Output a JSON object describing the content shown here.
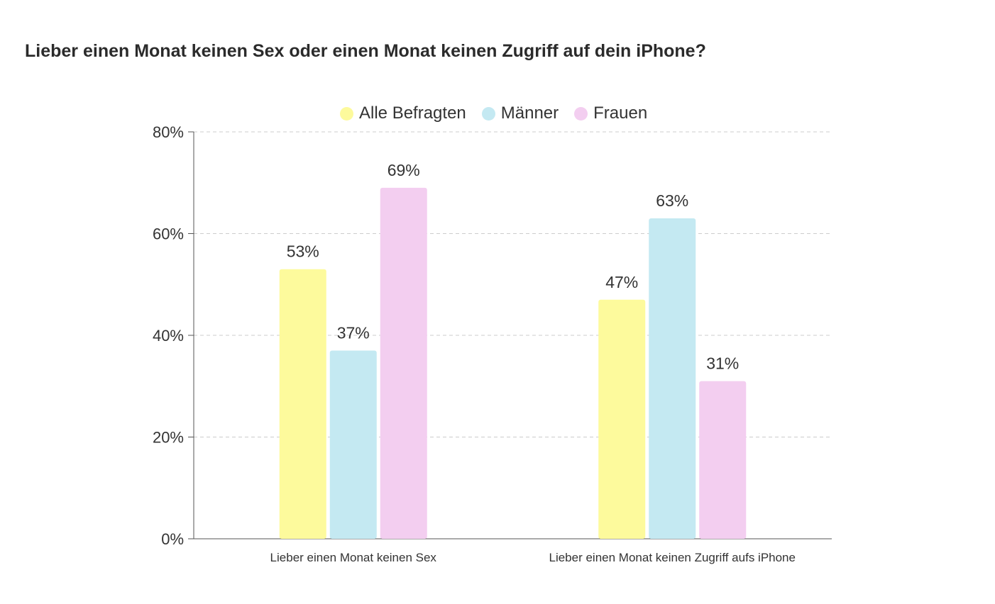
{
  "title": "Lieber einen Monat keinen Sex oder einen Monat keinen Zugriff auf dein iPhone?",
  "chart_data": {
    "type": "bar",
    "title": "Lieber einen Monat keinen Sex oder einen Monat keinen Zugriff auf dein iPhone?",
    "categories": [
      "Lieber einen Monat keinen Sex",
      "Lieber einen Monat keinen Zugriff aufs iPhone"
    ],
    "series": [
      {
        "name": "Alle Befragten",
        "color": "#fdfa9c",
        "values": [
          53,
          47
        ]
      },
      {
        "name": "Männer",
        "color": "#c4e9f2",
        "values": [
          37,
          63
        ]
      },
      {
        "name": "Frauen",
        "color": "#f3cef0",
        "values": [
          69,
          31
        ]
      }
    ],
    "value_suffix": "%",
    "ylim": [
      0,
      80
    ],
    "yticks": [
      0,
      20,
      40,
      60,
      80
    ],
    "ytick_labels": [
      "0%",
      "20%",
      "40%",
      "60%",
      "80%"
    ],
    "grid": true,
    "legend_position": "top-center"
  }
}
